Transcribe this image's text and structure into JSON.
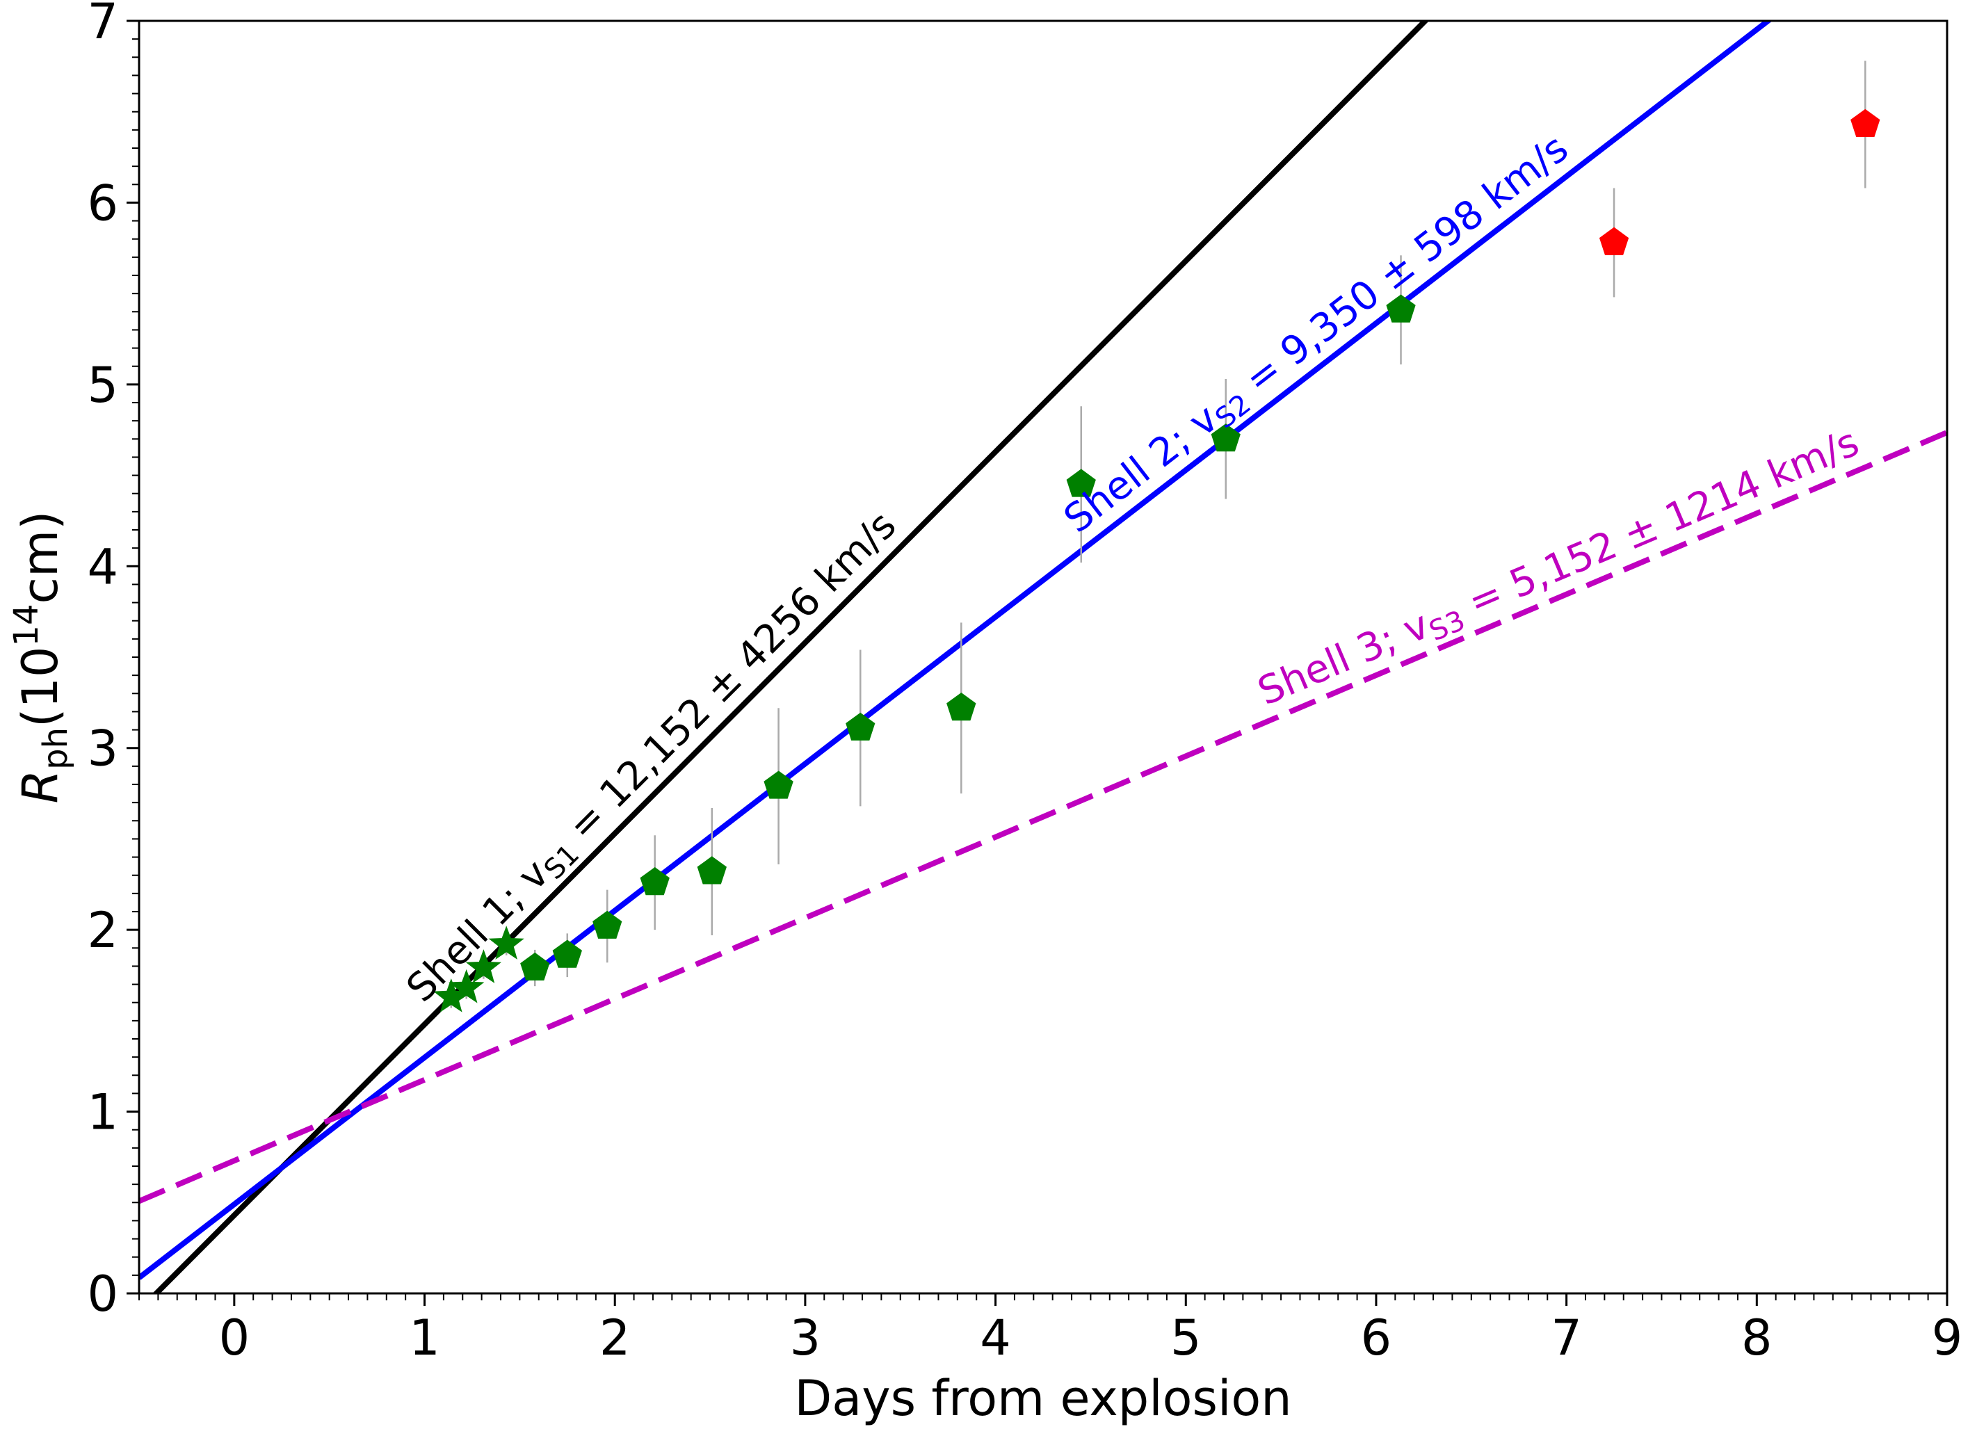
{
  "chart_data": {
    "type": "scatter",
    "xlabel": "Days from explosion",
    "ylabel": {
      "main": "R",
      "sub": "ph",
      "open": "(10",
      "sup": "14",
      "close": "cm)"
    },
    "xlim": [
      -0.5,
      9
    ],
    "ylim": [
      0,
      7
    ],
    "xticks": [
      0,
      1,
      2,
      3,
      4,
      5,
      6,
      7,
      8,
      9
    ],
    "yticks": [
      0,
      1,
      2,
      3,
      4,
      5,
      6,
      7
    ],
    "grid": false,
    "series": [
      {
        "marker": "star",
        "color": "#008000",
        "points": [
          {
            "x": 1.14,
            "y": 1.63,
            "err": 0.06
          },
          {
            "x": 1.22,
            "y": 1.68,
            "err": 0.06
          },
          {
            "x": 1.31,
            "y": 1.79,
            "err": 0.06
          },
          {
            "x": 1.43,
            "y": 1.92,
            "err": 0.06
          }
        ]
      },
      {
        "marker": "pentagon",
        "color": "#008000",
        "points": [
          {
            "x": 1.58,
            "y": 1.79,
            "err": 0.1
          },
          {
            "x": 1.75,
            "y": 1.86,
            "err": 0.12
          },
          {
            "x": 1.96,
            "y": 2.02,
            "err": 0.2
          },
          {
            "x": 2.21,
            "y": 2.26,
            "err": 0.26
          },
          {
            "x": 2.51,
            "y": 2.32,
            "err": 0.35
          },
          {
            "x": 2.86,
            "y": 2.79,
            "err": 0.43
          },
          {
            "x": 3.29,
            "y": 3.11,
            "err": 0.43
          },
          {
            "x": 3.82,
            "y": 3.22,
            "err": 0.47
          },
          {
            "x": 4.45,
            "y": 4.45,
            "err": 0.43
          },
          {
            "x": 5.21,
            "y": 4.7,
            "err": 0.33
          },
          {
            "x": 6.13,
            "y": 5.41,
            "err": 0.3
          }
        ]
      },
      {
        "marker": "pentagon",
        "color": "#ff0000",
        "points": [
          {
            "x": 7.25,
            "y": 5.78,
            "err": 0.3
          },
          {
            "x": 8.57,
            "y": 6.43,
            "err": 0.35
          }
        ]
      }
    ],
    "lines": [
      {
        "color": "#000000",
        "style": "solid",
        "slope": 1.0499,
        "intercept": 0.43,
        "label_html": "Shell 1; v<tspan baseline-shift=\"sub\" font-size=\"42\">S1</tspan>",
        "label_text": "Shell 1; vS1 = 12,152 ± 4256 km/s",
        "label_prefix": "Shell 1; v",
        "label_sub": "S1",
        "label_suffix": " = 12,152 ± 4256 km/s"
      },
      {
        "color": "#0000ff",
        "style": "solid",
        "slope": 0.8078,
        "intercept": 0.49,
        "label_prefix": "Shell 2; v",
        "label_sub": "S2",
        "label_suffix": " = 9,350 ± 598 km/s"
      },
      {
        "color": "#bf00bf",
        "style": "dashed",
        "slope": 0.4451,
        "intercept": 0.73,
        "label_prefix": "Shell 3; v",
        "label_sub": "S3",
        "label_suffix": " = 5,152 ± 1214 km/s"
      }
    ]
  }
}
